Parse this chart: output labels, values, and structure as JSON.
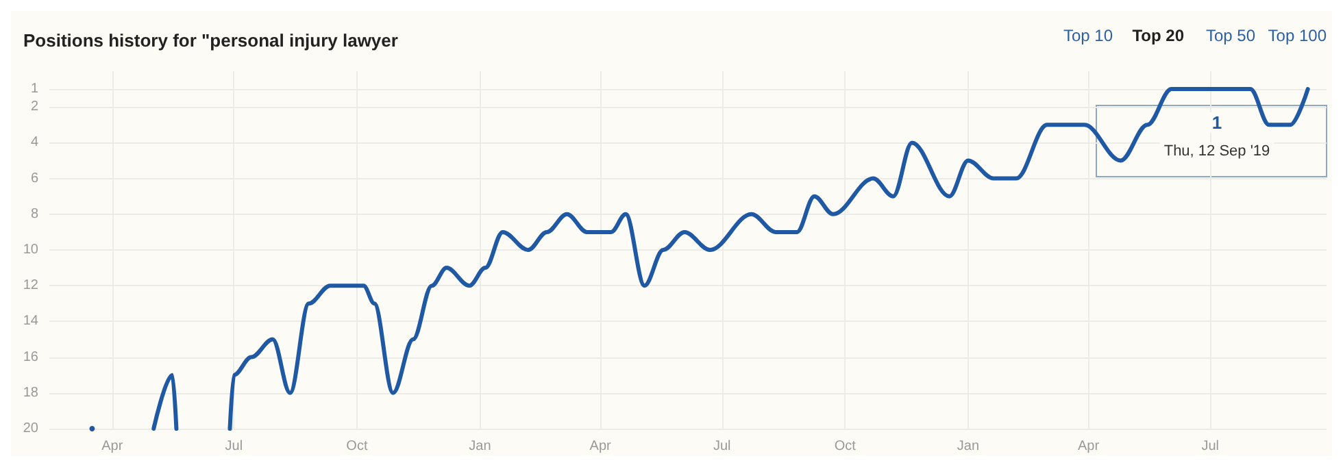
{
  "chart_data": {
    "type": "line",
    "title": "Positions history for \"personal injury lawyer",
    "x": [
      "2017-03-17",
      "2017-04-01",
      "2017-05-02",
      "2017-05-16",
      "2017-05-19",
      "2017-06-10",
      "2017-06-28",
      "2017-07-01",
      "2017-07-14",
      "2017-07-30",
      "2017-08-12",
      "2017-08-26",
      "2017-09-11",
      "2017-10-06",
      "2017-10-14",
      "2017-10-28",
      "2017-11-12",
      "2017-11-26",
      "2017-12-07",
      "2017-12-24",
      "2018-01-05",
      "2018-01-18",
      "2018-02-06",
      "2018-02-20",
      "2018-03-07",
      "2018-03-22",
      "2018-04-09",
      "2018-04-20",
      "2018-05-04",
      "2018-05-18",
      "2018-06-03",
      "2018-06-22",
      "2018-07-23",
      "2018-08-10",
      "2018-08-26",
      "2018-09-08",
      "2018-09-22",
      "2018-10-22",
      "2018-11-06",
      "2018-11-20",
      "2018-12-18",
      "2019-01-01",
      "2019-01-20",
      "2019-02-06",
      "2019-03-01",
      "2019-03-29",
      "2019-04-25",
      "2019-05-15",
      "2019-06-02",
      "2019-07-31",
      "2019-08-14",
      "2019-08-30",
      "2019-09-12"
    ],
    "series": [
      {
        "color": "#1f58a3",
        "values": [
          20,
          null,
          20,
          17,
          20,
          null,
          20,
          17,
          16,
          15,
          18,
          13,
          12,
          12,
          13,
          18,
          15,
          12,
          11,
          12,
          11,
          9,
          10,
          9,
          8,
          9,
          9,
          8,
          12,
          10,
          9,
          10,
          8,
          9,
          9,
          7,
          8,
          6,
          7,
          4,
          7,
          5,
          6,
          6,
          3,
          3,
          5,
          3,
          1,
          1,
          3,
          3,
          1
        ]
      }
    ],
    "xlim": [
      "2017-02-13",
      "2019-09-26"
    ],
    "xticks": [
      {
        "value": "2017-04-01",
        "label": "Apr"
      },
      {
        "value": "2017-07-01",
        "label": "Jul"
      },
      {
        "value": "2017-10-01",
        "label": "Oct"
      },
      {
        "value": "2018-01-01",
        "label": "Jan"
      },
      {
        "value": "2018-04-01",
        "label": "Apr"
      },
      {
        "value": "2018-07-01",
        "label": "Jul"
      },
      {
        "value": "2018-10-01",
        "label": "Oct"
      },
      {
        "value": "2019-01-01",
        "label": "Jan"
      },
      {
        "value": "2019-04-01",
        "label": "Apr"
      },
      {
        "value": "2019-07-01",
        "label": "Jul"
      }
    ],
    "ylim": [
      20,
      0
    ],
    "yticks": [
      1,
      2,
      4,
      6,
      8,
      10,
      12,
      14,
      16,
      18,
      20
    ],
    "grid": true,
    "marker": "none",
    "line_style": "solid",
    "annotations": [
      "1",
      "Thu, 12 Sep '19",
      "Top 10",
      "Top 20",
      "Top 50",
      "Top 100"
    ]
  }
}
